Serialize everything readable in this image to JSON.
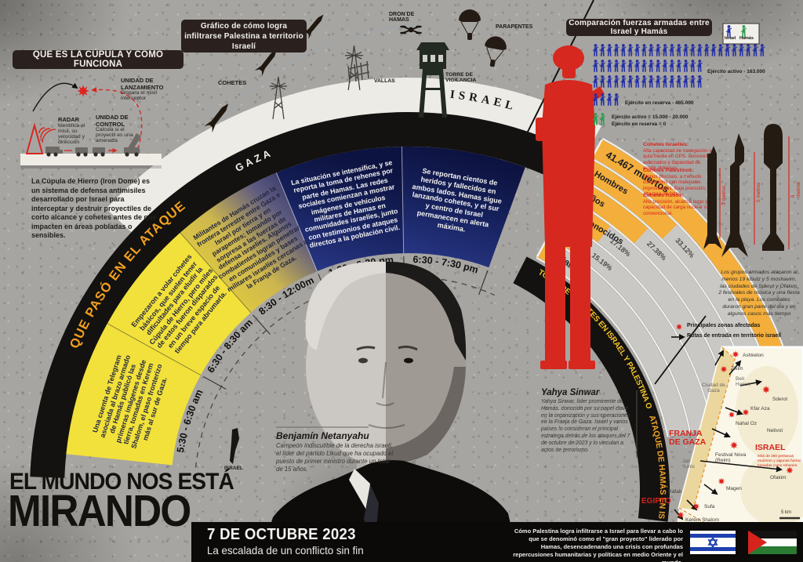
{
  "dome": {
    "title": "QUE ES LA CÚPULA Y COMO FUNCIONA",
    "launch_title": "UNIDAD DE LANZAMIENTO",
    "launch_desc": "Dispara el misil interceptor",
    "radar_title": "RADAR",
    "radar_desc": "Identifica el misil, su velocidad y dirección",
    "control_title": "UNIDAD DE CONTROL",
    "control_desc": "Calcula si el proyectil es una amenaza",
    "description": "La Cúpula de Hierro (Iron Dome) es un sistema de defensa antimisiles desarrollado por Israel para interceptar y destruir proyectiles de corto alcance y cohetes antes de que impacten en áreas pobladas o sensibles."
  },
  "infiltration": {
    "badge": "Gráfico de cómo logra infiltrarse Palestina a territorio Israelí",
    "cohetes": "COHETES",
    "dron": "DRON DE HAMAS",
    "parapentes": "PARAPENTES",
    "torre": "TORRE DE VIGILANCIA",
    "vallas": "VALLAS",
    "gaza": "GAZA",
    "israel": "ISRAEL"
  },
  "forces": {
    "title": "Comparación fuerzas armadas entre Israel y Hamás",
    "legend_israel": "Israel",
    "legend_hamas": "Hamás",
    "israel_active": "Ejército activo - 163.000",
    "israel_reserve": "Ejército en reserva - 465.000",
    "hamas_active": "Ejército activo = 15.000 - 20.000",
    "hamas_reserve": "Ejército en reserva = 0"
  },
  "rockets": {
    "israeli_title": "Cohetes Israelíes:",
    "israeli_desc": "Alta capacidad de navegación y guía media en GPS, sensores avanzados y capacidad de evadir defensas.",
    "palestinian_title": "Cohetes Palestinos:",
    "palestinian_desc": "Menos precisos, a menudo construidos con materiales improvisados. Baja precisión, alta tasa de fallos.",
    "russian_title": "Cohetes Rusos:",
    "russian_desc": "Alta precisión, alcance largo y capacidad de carga nuclear o convencional.",
    "m3": "3 metros",
    "m5": "5 metros",
    "m8": "8 metros"
  },
  "timeline": {
    "arc_title": "QUE PASÓ EN EL ATAQUE",
    "segments": [
      {
        "time": "5:30 - 6:30 am",
        "text": "Una cuenta de Telegram asociada al brazo armado de Hamás publicó las primeras imágenes desde tierra, tomadas en Kerem Shalom, el paso fronterizo más al sur de Gaza."
      },
      {
        "time": "6:30 - 8:30 am",
        "text": "Empezaron a volar cohetes básicos, que suelen tener dificultades para eludir la Cúpula de Hierro, pero miles de estos fueron disparados en un breve espacio de tiempo para abrumarla."
      },
      {
        "time": "8:30 - 12:00m",
        "text": "Militantes de Hamás cruzan la frontera terrestre entre Gaza e Israel por tierra y en parapentes; tomando por sorpresa a las fuerzas de defensa israelíes. Algunos combatientes logran penetrar en comunidades y bases militares israelíes cercanas a la Franja de Gaza."
      },
      {
        "time": "1:30 - 6:30 pm",
        "text": "La situación se intensifica, y se reporta la toma de rehenes por parte de Hamas. Las redes sociales comienzan a mostrar imágenes de vehículos militares de Hamas en comunidades israelíes, junto con testimonios de ataques directos a la población civil."
      },
      {
        "time": "6:30 - 7:30 pm",
        "text": "Se reportan cientos de heridos y fallecidos en ambos lados. Hamas sigue lanzando cohetes, y el sur y centro de Israel permanecen en alerta máxima."
      }
    ]
  },
  "arcs": {
    "total_deaths": "TOTAL DE MUERTES EN ISRAEL Y PALESTINA OCT 7",
    "attack": "ATAQUE DE HAMÁS EN ISRAEL"
  },
  "chart_data": [
    {
      "type": "bar",
      "variant": "radial",
      "title": "TOTAL DE MUERTES EN ISRAEL Y PALESTINA OCT 7",
      "total_label": "41.467 muertos",
      "categories": [
        "Hombres",
        "Niños",
        "Desconocidos",
        "Mujeres",
        "Ancianos"
      ],
      "values": [
        33.12,
        27.38,
        17.18,
        15.19,
        7.13
      ],
      "unit": "%",
      "bar_color": "#f3ae3c",
      "track_color": "#c9c8c5"
    },
    {
      "type": "pictograph",
      "title": "Comparación fuerzas armadas entre Israel y Hamás",
      "israel": {
        "color": "#2430a6",
        "rows": [
          25,
          16,
          16,
          4
        ],
        "active": "163.000",
        "reserve": "465.000"
      },
      "hamas": {
        "color": "#2e9e4f",
        "icons": 2,
        "active": "15.000 - 20.000",
        "reserve": "0"
      }
    }
  ],
  "portraits": {
    "netanyahu_name": "Benjamín Netanyahu",
    "netanyahu_bio": "Campeón indiscutible de la derecha israelí, el líder del partido Likud que ha ocupado el puesto de primer ministro durante un total de 15 años.",
    "sinwar_name": "Yahya Sinwar",
    "sinwar_bio": "Yahya Sinwar, líder prominente de Hamás, conocido por su papel clave en la organización y sus operaciones en la Franja de Gaza. Israel y varios países lo consideran el principal estratega detrás de los ataques del 7 de octubre de 2023 y lo vinculan a actos de terrorismo.",
    "israel_mini": "ISRAEL"
  },
  "map": {
    "legend_zones": "Principales zonas afectadas",
    "legend_routes": "Rutas de entrada en territorio israelí",
    "note": "Los grupos armados atacaron al menos 19 kibutz y 5 moshavim, las ciudades de Sderot y Ofakim, 2 festivales de música y una fiesta en la playa. Los combates duraron gran parte del día y en algunos casos más tiempo",
    "casualties_note": "Más de 260 personas murieron y algunas fueron tomadas como rehenes.",
    "scale": "5 km",
    "labels": {
      "ashkelon": "Ashkelon",
      "zikim": "Zikim",
      "beit_hanun": "Beit Hanun",
      "ciudad_gaza": "Ciudad de Gaza",
      "sderot": "Sderot",
      "kfar_aza": "Kfar Aza",
      "nahal_oz": "Nahal Oz",
      "netivot": "Netivot",
      "franja": "FRANJA DE GAZA",
      "israel": "ISRAEL",
      "nova": "Festival Nova (Reim)",
      "jan_yunis": "Jan Yunis",
      "ofakim": "Ofakim",
      "magen": "Magen",
      "rafah": "Ráfah",
      "sufa": "Sufa",
      "kerem_shalom": "Kerem Shalom",
      "egipto": "EGIPTO"
    }
  },
  "footer": {
    "title_line1": "EL MUNDO NOS ESTÁ",
    "title_line2": "MIRANDO",
    "date": "7 DE OCTUBRE 2023",
    "subtitle": "La escalada de un conflicto sin fin",
    "description": "Cómo Palestina logra infiltrarse a Israel para llevar a cabo lo que se denominó como el \"gran proyecto\" liderado por Hamas, desencadenando una crisis con profundas repercusiones humanitarias y políticas en medio Oriente y el mundo."
  },
  "colors": {
    "yellow": "#f2e13a",
    "navy": "#15205a",
    "amber": "#f3ae3c",
    "red": "#d6281f",
    "blue": "#2430a6",
    "green": "#2e9e4f"
  }
}
